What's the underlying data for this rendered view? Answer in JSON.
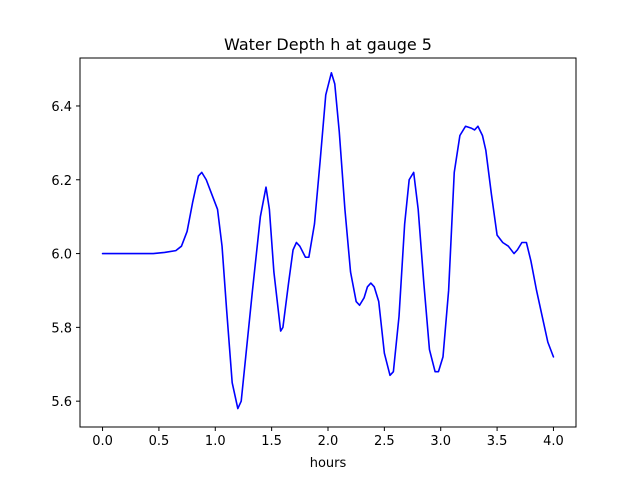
{
  "chart_data": {
    "type": "line",
    "title": "Water Depth h at gauge 5",
    "xlabel": "hours",
    "ylabel": "",
    "xlim": [
      -0.2,
      4.2
    ],
    "ylim": [
      5.53,
      6.53
    ],
    "xticks": [
      0.0,
      0.5,
      1.0,
      1.5,
      2.0,
      2.5,
      3.0,
      3.5,
      4.0
    ],
    "xtick_labels": [
      "0.0",
      "0.5",
      "1.0",
      "1.5",
      "2.0",
      "2.5",
      "3.0",
      "3.5",
      "4.0"
    ],
    "yticks": [
      5.6,
      5.8,
      6.0,
      6.2,
      6.4
    ],
    "ytick_labels": [
      "5.6",
      "5.8",
      "6.0",
      "6.2",
      "6.4"
    ],
    "grid": false,
    "series": [
      {
        "color": "#0000ff",
        "x": [
          0.0,
          0.2,
          0.45,
          0.55,
          0.65,
          0.7,
          0.75,
          0.8,
          0.85,
          0.88,
          0.92,
          0.97,
          1.02,
          1.06,
          1.1,
          1.15,
          1.2,
          1.23,
          1.27,
          1.33,
          1.4,
          1.45,
          1.48,
          1.52,
          1.58,
          1.6,
          1.65,
          1.69,
          1.72,
          1.75,
          1.8,
          1.83,
          1.88,
          1.93,
          1.98,
          2.03,
          2.06,
          2.1,
          2.15,
          2.2,
          2.25,
          2.28,
          2.32,
          2.35,
          2.38,
          2.41,
          2.45,
          2.5,
          2.55,
          2.58,
          2.63,
          2.68,
          2.72,
          2.76,
          2.8,
          2.85,
          2.9,
          2.95,
          2.98,
          3.02,
          3.07,
          3.12,
          3.17,
          3.22,
          3.27,
          3.3,
          3.33,
          3.37,
          3.4,
          3.45,
          3.5,
          3.55,
          3.6,
          3.65,
          3.68,
          3.72,
          3.76,
          3.8,
          3.85,
          3.9,
          3.95,
          4.0
        ],
        "y": [
          6.0,
          6.0,
          6.0,
          6.003,
          6.008,
          6.02,
          6.06,
          6.14,
          6.21,
          6.22,
          6.2,
          6.16,
          6.12,
          6.02,
          5.85,
          5.65,
          5.58,
          5.6,
          5.72,
          5.9,
          6.1,
          6.18,
          6.12,
          5.95,
          5.79,
          5.8,
          5.92,
          6.01,
          6.03,
          6.02,
          5.99,
          5.99,
          6.08,
          6.25,
          6.43,
          6.49,
          6.46,
          6.33,
          6.12,
          5.95,
          5.87,
          5.86,
          5.88,
          5.91,
          5.92,
          5.91,
          5.87,
          5.73,
          5.67,
          5.68,
          5.83,
          6.08,
          6.2,
          6.22,
          6.12,
          5.92,
          5.74,
          5.68,
          5.68,
          5.72,
          5.9,
          6.22,
          6.32,
          6.345,
          6.34,
          6.335,
          6.345,
          6.32,
          6.28,
          6.16,
          6.05,
          6.03,
          6.02,
          6.0,
          6.01,
          6.03,
          6.03,
          5.98,
          5.9,
          5.83,
          5.76,
          5.72
        ]
      }
    ]
  }
}
